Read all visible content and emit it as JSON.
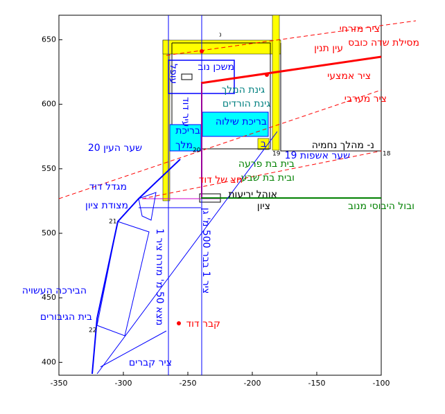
{
  "chart_data": {
    "type": "annotated-plot",
    "xlim": [
      -350,
      -100
    ],
    "ylim": [
      390,
      669
    ],
    "xticks": [
      -350,
      -300,
      -250,
      -200,
      -150,
      -100
    ],
    "yticks": [
      400,
      450,
      500,
      550,
      600,
      650
    ],
    "annotations": [
      "ציר מזרחי",
      "מסילת שדה כובס",
      "עין תנין",
      "ציר אמצעי",
      "ציר מערבי",
      "משכן נוב",
      "גינת המלך",
      "גינת הורדים",
      "בריכת שילוה",
      "בריכת",
      "מלך",
      "נ- מהלך נחמיה",
      "שער אשפות 19",
      "שער העין 20",
      "בית בת פרעה",
      "ובית בת שבע",
      "חצ של דוד",
      "אוהל יריעות",
      "ציון",
      "ובול היבוסי מנוב",
      "מגדל דוד",
      "מצודת ציון",
      "הבירכה העשויה",
      "בית הגיבורים",
      "קבר דוד",
      "ציר קברים",
      "מצא 50 מ' מזרח ציר 1",
      "ציר 1 בבר 500 מ' גן",
      "18",
      "19",
      "20",
      "21",
      "22",
      "נ",
      "ב",
      "עופל",
      "עיר דוד"
    ]
  }
}
